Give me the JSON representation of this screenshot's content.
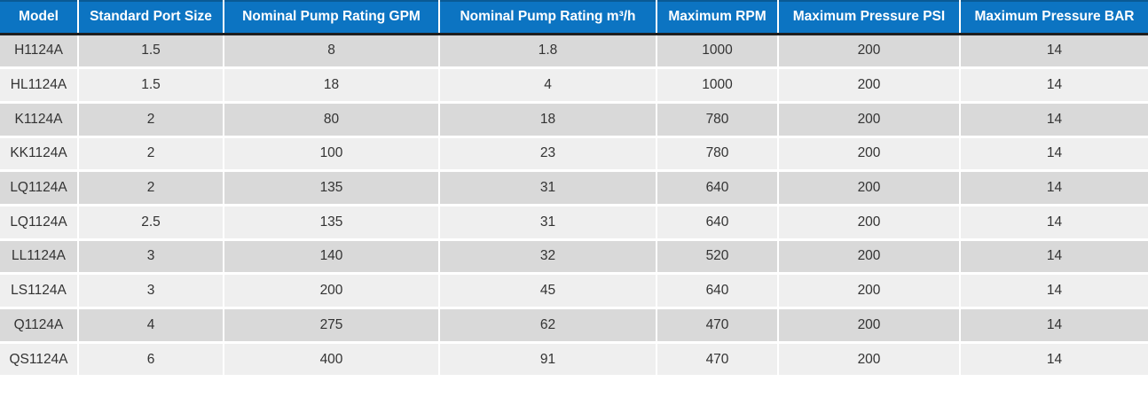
{
  "chart_data": {
    "type": "table",
    "columns": [
      "Model",
      "Standard Port Size",
      "Nominal Pump Rating GPM",
      "Nominal Pump Rating m³/h",
      "Maximum RPM",
      "Maximum Pressure PSI",
      "Maximum Pressure BAR"
    ],
    "rows": [
      [
        "H1124A",
        "1.5",
        "8",
        "1.8",
        "1000",
        "200",
        "14"
      ],
      [
        "HL1124A",
        "1.5",
        "18",
        "4",
        "1000",
        "200",
        "14"
      ],
      [
        "K1124A",
        "2",
        "80",
        "18",
        "780",
        "200",
        "14"
      ],
      [
        "KK1124A",
        "2",
        "100",
        "23",
        "780",
        "200",
        "14"
      ],
      [
        "LQ1124A",
        "2",
        "135",
        "31",
        "640",
        "200",
        "14"
      ],
      [
        "LQ1124A",
        "2.5",
        "135",
        "31",
        "640",
        "200",
        "14"
      ],
      [
        "LL1124A",
        "3",
        "140",
        "32",
        "520",
        "200",
        "14"
      ],
      [
        "LS1124A",
        "3",
        "200",
        "45",
        "640",
        "200",
        "14"
      ],
      [
        "Q1124A",
        "4",
        "275",
        "62",
        "470",
        "200",
        "14"
      ],
      [
        "QS1124A",
        "6",
        "400",
        "91",
        "470",
        "200",
        "14"
      ]
    ],
    "layout": {
      "grid": false,
      "row_striping": true,
      "header_position": "top",
      "cell_alignment": "center"
    }
  },
  "colors": {
    "header_bg": "#0c74c2",
    "header_text": "#ffffff",
    "header_underline": "#1f1f1f",
    "header_top_edge": "#0a5a94",
    "row_odd_bg": "#d9d9d9",
    "row_even_bg": "#efefef",
    "divider": "#ffffff",
    "cell_text": "#333333"
  }
}
